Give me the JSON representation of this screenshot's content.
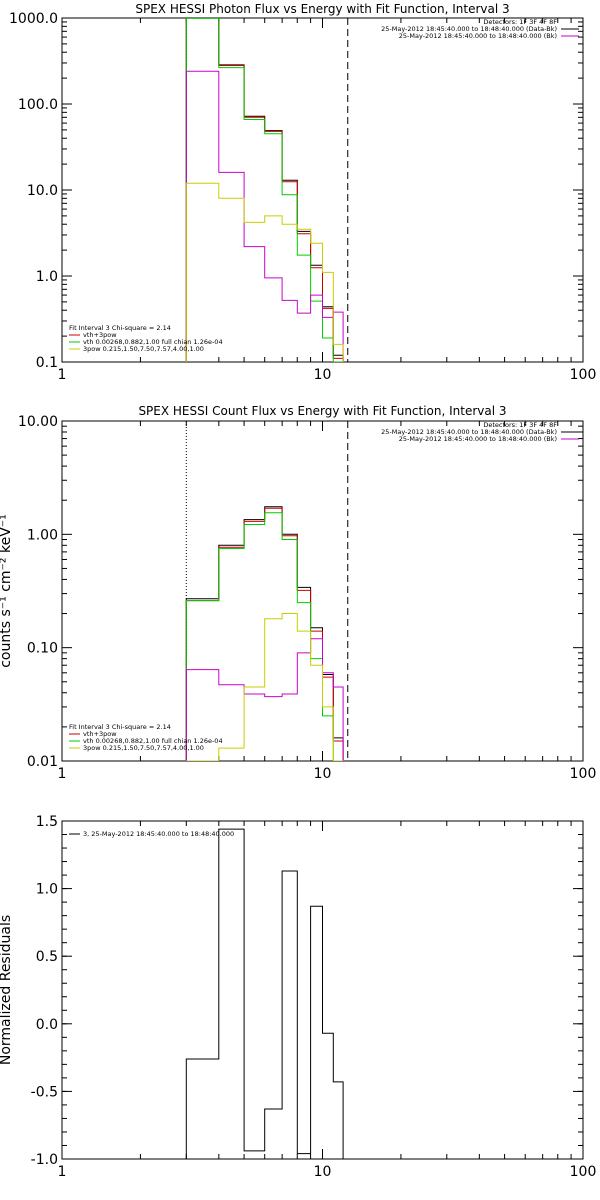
{
  "charts": [
    {
      "id": "photon",
      "type": "line",
      "title": "SPEX HESSI Photon Flux vs Energy with Fit Function, Interval 3",
      "xscale": "log",
      "yscale": "log",
      "xlim": [
        1,
        100
      ],
      "ylim": [
        0.1,
        1000
      ],
      "yticks": [
        0.1,
        1,
        10,
        100,
        1000
      ],
      "ytick_labels": [
        "0.1",
        "1.0",
        "10.0",
        "100.0",
        "1000.0"
      ],
      "xticks": [
        1,
        10,
        100
      ],
      "xtick_labels": [
        "1",
        "10",
        "100"
      ],
      "ylabel": "",
      "vlines": [
        {
          "x": 3.0,
          "style": "dotted"
        },
        {
          "x": 12.5,
          "style": "dashed"
        }
      ],
      "legend_right": [
        {
          "text": "Detectors: 1F 3F 4F 8F",
          "color": "#000000"
        },
        {
          "text": "25-May-2012 18:45:40.000 to 18:48:40.000 (Data-Bk)",
          "color": "#000000"
        },
        {
          "text": "25-May-2012 18:45:40.000 to 18:48:40.000 (Bk)",
          "color": "#cc00cc"
        }
      ],
      "legend_left": [
        {
          "text": "Fit Interval 3   Chi-square = 2.14",
          "color": "#000000"
        },
        {
          "text": "vth+3pow",
          "color": "#cc0000"
        },
        {
          "text": "vth 0.00268,0.882,1.00   full chian 1.26e-04",
          "color": "#00cc00"
        },
        {
          "text": "3pow 0.215,1.50,7.50,7.57,4.00,1.00",
          "color": "#cccc00"
        }
      ]
    },
    {
      "id": "count",
      "type": "line",
      "title": "SPEX HESSI Count Flux vs Energy with Fit Function, Interval 3",
      "xscale": "log",
      "yscale": "log",
      "xlim": [
        1,
        100
      ],
      "ylim": [
        0.01,
        10
      ],
      "yticks": [
        0.01,
        0.1,
        1,
        10
      ],
      "ytick_labels": [
        "0.01",
        "0.10",
        "1.00",
        "10.00"
      ],
      "xticks": [
        1,
        10,
        100
      ],
      "xtick_labels": [
        "1",
        "10",
        "100"
      ],
      "ylabel": "counts s⁻¹ cm⁻² keV⁻¹",
      "vlines": [
        {
          "x": 3.0,
          "style": "dotted"
        },
        {
          "x": 12.5,
          "style": "dashed"
        }
      ],
      "legend_right": [
        {
          "text": "Detectors: 1F 3F 4F 8F",
          "color": "#000000"
        },
        {
          "text": "25-May-2012 18:45:40.000 to 18:48:40.000 (Data-Bk)",
          "color": "#000000"
        },
        {
          "text": "25-May-2012 18:45:40.000 to 18:48:40.000 (Bk)",
          "color": "#cc00cc"
        }
      ],
      "legend_left": [
        {
          "text": "Fit Interval 3   Chi-square = 2.14",
          "color": "#000000"
        },
        {
          "text": "vth+3pow",
          "color": "#cc0000"
        },
        {
          "text": "vth 0.00268,0.882,1.00   full chian 1.26e-04",
          "color": "#00cc00"
        },
        {
          "text": "3pow 0.215,1.50,7.50,7.57,4.00,1.00",
          "color": "#cccc00"
        }
      ]
    },
    {
      "id": "resid",
      "type": "line",
      "title": "",
      "xscale": "log",
      "yscale": "linear",
      "xlim": [
        1,
        100
      ],
      "ylim": [
        -1.0,
        1.5
      ],
      "yticks": [
        -1.0,
        -0.5,
        0.0,
        0.5,
        1.0,
        1.5
      ],
      "ytick_labels": [
        "-1.0",
        "-0.5",
        "0.0",
        "0.5",
        "1.0",
        "1.5"
      ],
      "xticks": [
        1,
        10,
        100
      ],
      "xtick_labels": [
        "1",
        "10",
        "100"
      ],
      "ylabel": "Normalized Residuals",
      "vlines": [],
      "legend_right": [],
      "legend_left": [
        {
          "text": "3, 25-May-2012 18:45:40.000 to 18:48:40.000",
          "color": "#000000"
        }
      ]
    }
  ],
  "chart_data": [
    {
      "type": "line",
      "title": "SPEX HESSI Photon Flux vs Energy with Fit Function, Interval 3",
      "xscale": "log",
      "yscale": "log",
      "edges": [
        3.0,
        4.0,
        5.0,
        6.0,
        7.0,
        8.0,
        9.0,
        10.0,
        11.0,
        12.0
      ],
      "series": [
        {
          "color": "#000000",
          "values": [
            1000,
            285,
            72,
            49,
            13,
            3.3,
            1.33,
            0.44,
            0.12
          ]
        },
        {
          "color": "#cc0000",
          "values": [
            1000,
            280,
            70,
            48,
            12.5,
            3.1,
            1.25,
            0.42,
            0.11
          ]
        },
        {
          "color": "#00cc00",
          "values": [
            990,
            265,
            66,
            45,
            8.8,
            1.75,
            0.51,
            0.19,
            0.08
          ]
        },
        {
          "color": "#cc00cc",
          "values": [
            240,
            16,
            2.2,
            0.95,
            0.52,
            0.37,
            0.6,
            0.33,
            0.38
          ]
        },
        {
          "color": "#cccc00",
          "values": [
            12,
            8,
            4.2,
            5,
            4,
            3.5,
            2.4,
            1.1,
            0.16
          ]
        }
      ]
    },
    {
      "type": "line",
      "title": "SPEX HESSI Count Flux vs Energy with Fit Function, Interval 3",
      "xscale": "log",
      "yscale": "log",
      "edges": [
        3.0,
        4.0,
        5.0,
        6.0,
        7.0,
        8.0,
        9.0,
        10.0,
        11.0,
        12.0
      ],
      "series": [
        {
          "color": "#000000",
          "values": [
            0.27,
            0.8,
            1.35,
            1.75,
            1.0,
            0.34,
            0.15,
            0.058,
            0.016
          ]
        },
        {
          "color": "#cc0000",
          "values": [
            0.26,
            0.77,
            1.3,
            1.7,
            0.97,
            0.32,
            0.14,
            0.055,
            0.015
          ]
        },
        {
          "color": "#00cc00",
          "values": [
            0.26,
            0.75,
            1.22,
            1.55,
            0.9,
            0.25,
            0.08,
            0.025,
            0.0095
          ]
        },
        {
          "color": "#cc00cc",
          "values": [
            0.064,
            0.047,
            0.039,
            0.037,
            0.039,
            0.09,
            0.12,
            0.06,
            0.045
          ]
        },
        {
          "color": "#cccc00",
          "values": [
            0.0095,
            0.013,
            0.045,
            0.18,
            0.2,
            0.14,
            0.07,
            0.03,
            0.01
          ]
        }
      ]
    },
    {
      "type": "line",
      "title": "",
      "xscale": "log",
      "yscale": "linear",
      "ylabel": "Normalized Residuals",
      "edges": [
        3.0,
        4.0,
        5.0,
        6.0,
        7.0,
        8.0,
        9.0,
        10.0,
        11.0,
        12.0
      ],
      "series": [
        {
          "color": "#000000",
          "values": [
            -0.26,
            1.44,
            -0.94,
            -0.63,
            1.13,
            -0.96,
            0.87,
            -0.07,
            -0.43
          ]
        }
      ]
    }
  ]
}
